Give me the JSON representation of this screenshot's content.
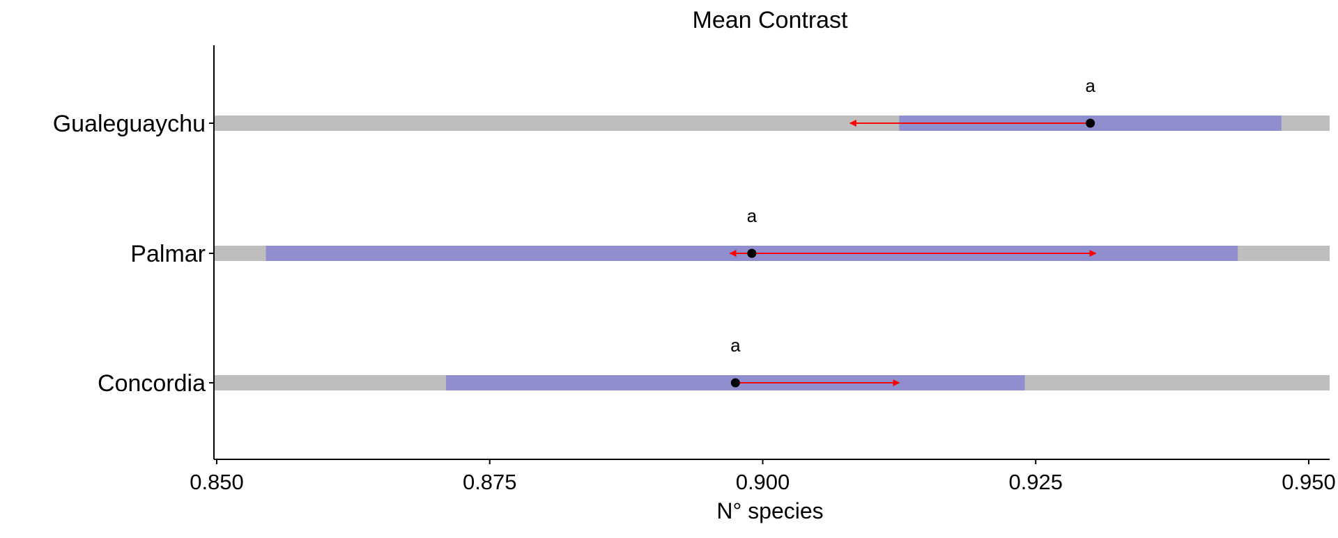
{
  "chart_data": {
    "type": "interval",
    "title": "Mean Contrast",
    "xlabel": "N° species",
    "ylabel": "",
    "xlim": [
      0.85,
      0.952
    ],
    "x_ticks": [
      0.85,
      0.875,
      0.9,
      0.925,
      0.95
    ],
    "x_tick_labels": [
      "0.850",
      "0.875",
      "0.900",
      "0.925",
      "0.950"
    ],
    "categories": [
      "Gualeguaychu",
      "Palmar",
      "Concordia"
    ],
    "rows": [
      {
        "category": "Gualeguaychu",
        "point": 0.93,
        "interval": [
          0.9125,
          0.9475
        ],
        "arrow_to": 0.908,
        "label": "a"
      },
      {
        "category": "Palmar",
        "point": 0.899,
        "interval": [
          0.8545,
          0.9435
        ],
        "arrow_from": 0.897,
        "arrow_to": 0.9305,
        "label": "a"
      },
      {
        "category": "Concordia",
        "point": 0.8975,
        "interval": [
          0.871,
          0.924
        ],
        "arrow_to": 0.9125,
        "label": "a"
      }
    ],
    "colors": {
      "background_bar": "#bebebe",
      "interval_bar": "#8f8fd0",
      "arrow": "#ff0000",
      "point": "#000000"
    },
    "grid": false,
    "legend": "none"
  }
}
